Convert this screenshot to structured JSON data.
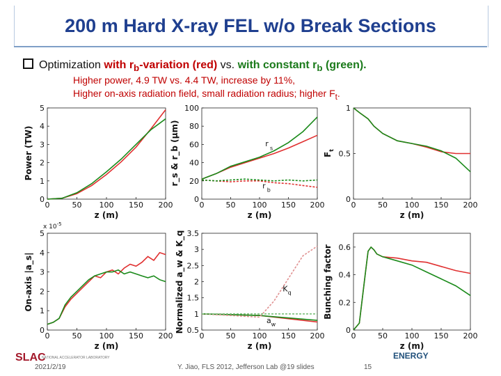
{
  "title": "200 m Hard X-ray FEL w/o Break Sections",
  "bullet": {
    "prefix": "Optimization ",
    "with_rb": "with r",
    "rb_sub": "b",
    "variation": "-variation (red)",
    "vs": " vs. ",
    "with_const": "with constant r",
    "const_sub": "b",
    "green_tag": " (green)."
  },
  "subtext": {
    "line1": "Higher power, 4.9 TW vs. 4.4 TW, increase by 11%,",
    "line2": "Higher on-axis radiation field, small radiation radius; higher F",
    "line2_sub": "t",
    "line2_end": "."
  },
  "footer": {
    "date": "2021/2/19",
    "center": "Y. Jiao, FLS 2012, Jefferson Lab @19 slides",
    "page": "15",
    "left_logo": "SLAC",
    "left_logo_tag": "NATIONAL ACCELERATOR LABORATORY",
    "right_logo": "ENERGY"
  },
  "colors": {
    "red": "#e03030",
    "green": "#1a8a1a",
    "title": "#1f3f8f"
  },
  "chart_data": [
    {
      "type": "line",
      "title": "",
      "xlabel": "z (m)",
      "ylabel": "Power (TW)",
      "xlim": [
        0,
        200
      ],
      "ylim": [
        0,
        5
      ],
      "xticks": [
        "0",
        "50",
        "100",
        "150",
        "200"
      ],
      "yticks": [
        "0",
        "1",
        "2",
        "3",
        "4",
        "5"
      ],
      "series": [
        {
          "name": "red",
          "color": "#e03030",
          "x": [
            0,
            25,
            50,
            75,
            100,
            125,
            150,
            175,
            200
          ],
          "y": [
            0,
            0.05,
            0.3,
            0.75,
            1.35,
            2.05,
            2.85,
            3.85,
            4.9
          ]
        },
        {
          "name": "green",
          "color": "#1a8a1a",
          "x": [
            0,
            25,
            50,
            75,
            100,
            125,
            150,
            175,
            200
          ],
          "y": [
            0,
            0.05,
            0.35,
            0.85,
            1.5,
            2.2,
            3.0,
            3.8,
            4.4
          ]
        }
      ]
    },
    {
      "type": "line",
      "xlabel": "z (m)",
      "ylabel": "r_s & r_b (μm)",
      "xlim": [
        0,
        200
      ],
      "ylim": [
        0,
        100
      ],
      "xticks": [
        "0",
        "50",
        "100",
        "150",
        "200"
      ],
      "yticks": [
        "0",
        "20",
        "40",
        "60",
        "80",
        "100"
      ],
      "annotations": [
        "r",
        "s",
        "r",
        "b"
      ],
      "series": [
        {
          "name": "rs red",
          "color": "#e03030",
          "x": [
            0,
            25,
            50,
            75,
            100,
            125,
            150,
            175,
            200
          ],
          "y": [
            22,
            28,
            35,
            40,
            45,
            50,
            56,
            63,
            70
          ]
        },
        {
          "name": "rs green",
          "color": "#1a8a1a",
          "x": [
            0,
            25,
            50,
            75,
            100,
            125,
            150,
            175,
            200
          ],
          "y": [
            22,
            28,
            36,
            41,
            46,
            53,
            62,
            74,
            90
          ]
        },
        {
          "name": "rb red",
          "color": "#e03030",
          "x": [
            0,
            25,
            50,
            75,
            100,
            125,
            150,
            175,
            200
          ],
          "y": [
            21,
            20,
            19,
            20,
            20,
            18,
            17,
            15,
            13
          ]
        },
        {
          "name": "rb green",
          "color": "#1a8a1a",
          "x": [
            0,
            25,
            50,
            75,
            100,
            125,
            150,
            175,
            200
          ],
          "y": [
            21,
            20,
            21,
            22,
            21,
            20,
            21,
            20,
            21
          ]
        }
      ]
    },
    {
      "type": "line",
      "xlabel": "z (m)",
      "ylabel": "F",
      "ylabel_sub": "t",
      "xlim": [
        0,
        200
      ],
      "ylim": [
        0,
        1
      ],
      "xticks": [
        "0",
        "50",
        "100",
        "150",
        "200"
      ],
      "yticks": [
        "0",
        "0.5",
        "1"
      ],
      "series": [
        {
          "name": "red",
          "color": "#e03030",
          "x": [
            0,
            10,
            25,
            35,
            50,
            75,
            100,
            125,
            150,
            175,
            200
          ],
          "y": [
            1,
            0.95,
            0.88,
            0.8,
            0.72,
            0.64,
            0.61,
            0.57,
            0.52,
            0.5,
            0.5
          ]
        },
        {
          "name": "green",
          "color": "#1a8a1a",
          "x": [
            0,
            10,
            25,
            35,
            50,
            75,
            100,
            125,
            150,
            175,
            200
          ],
          "y": [
            1,
            0.95,
            0.88,
            0.8,
            0.72,
            0.64,
            0.61,
            0.58,
            0.53,
            0.45,
            0.3
          ]
        }
      ]
    },
    {
      "type": "line",
      "xlabel": "z (m)",
      "ylabel": "On-axis |a_s|",
      "multiplier": "x 10",
      "multiplier_exp": "-5",
      "xlim": [
        0,
        200
      ],
      "ylim": [
        0,
        5
      ],
      "xticks": [
        "0",
        "50",
        "100",
        "150",
        "200"
      ],
      "yticks": [
        "0",
        "1",
        "2",
        "3",
        "4",
        "5"
      ],
      "series": [
        {
          "name": "red",
          "color": "#e03030",
          "x": [
            0,
            10,
            20,
            30,
            40,
            50,
            60,
            70,
            80,
            90,
            100,
            110,
            120,
            130,
            140,
            150,
            160,
            170,
            180,
            190,
            200
          ],
          "y": [
            0.3,
            0.4,
            0.6,
            1.2,
            1.6,
            1.9,
            2.2,
            2.5,
            2.8,
            2.7,
            3.0,
            3.1,
            2.9,
            3.2,
            3.4,
            3.3,
            3.5,
            3.8,
            3.6,
            4.0,
            3.9
          ]
        },
        {
          "name": "green",
          "color": "#1a8a1a",
          "x": [
            0,
            10,
            20,
            30,
            40,
            50,
            60,
            70,
            80,
            90,
            100,
            110,
            120,
            130,
            140,
            150,
            160,
            170,
            180,
            190,
            200
          ],
          "y": [
            0.3,
            0.4,
            0.6,
            1.3,
            1.7,
            2.0,
            2.3,
            2.6,
            2.8,
            2.9,
            3.0,
            3.0,
            3.1,
            2.9,
            3.0,
            2.9,
            2.8,
            2.7,
            2.8,
            2.6,
            2.5
          ]
        }
      ]
    },
    {
      "type": "line",
      "xlabel": "z (m)",
      "ylabel": "Normalized a_w & K_q",
      "xlim": [
        0,
        200
      ],
      "ylim": [
        0.5,
        3.5
      ],
      "xticks": [
        "0",
        "50",
        "100",
        "150",
        "200"
      ],
      "yticks": [
        "0.5",
        "1",
        "1.5",
        "2",
        "2.5",
        "3",
        "3.5"
      ],
      "annotations": [
        "K",
        "q",
        "a",
        "w"
      ],
      "series": [
        {
          "name": "aw red",
          "color": "#e03030",
          "x": [
            0,
            100,
            200
          ],
          "y": [
            1.0,
            0.95,
            0.75
          ]
        },
        {
          "name": "aw green",
          "color": "#1a8a1a",
          "x": [
            0,
            100,
            200
          ],
          "y": [
            1.0,
            0.95,
            0.8
          ]
        },
        {
          "name": "Kq red",
          "color": "#e09090",
          "x": [
            0,
            100,
            125,
            150,
            175,
            200
          ],
          "y": [
            1.0,
            0.9,
            1.4,
            2.1,
            2.8,
            3.1
          ]
        },
        {
          "name": "Kq green",
          "color": "#7abf7a",
          "x": [
            0,
            100,
            150,
            200
          ],
          "y": [
            1.0,
            1.0,
            1.0,
            1.0
          ]
        }
      ]
    },
    {
      "type": "line",
      "xlabel": "z (m)",
      "ylabel": "Bunching factor",
      "xlim": [
        0,
        200
      ],
      "ylim": [
        0,
        0.7
      ],
      "xticks": [
        "0",
        "50",
        "100",
        "150",
        "200"
      ],
      "yticks": [
        "0",
        "0.2",
        "0.4",
        "0.6"
      ],
      "series": [
        {
          "name": "red",
          "color": "#e03030",
          "x": [
            0,
            10,
            20,
            25,
            30,
            35,
            40,
            50,
            75,
            100,
            125,
            150,
            175,
            200
          ],
          "y": [
            0.0,
            0.05,
            0.4,
            0.57,
            0.6,
            0.58,
            0.55,
            0.53,
            0.52,
            0.5,
            0.49,
            0.46,
            0.43,
            0.41
          ]
        },
        {
          "name": "green",
          "color": "#1a8a1a",
          "x": [
            0,
            10,
            20,
            25,
            30,
            35,
            40,
            50,
            75,
            100,
            125,
            150,
            175,
            200
          ],
          "y": [
            0.0,
            0.05,
            0.4,
            0.57,
            0.6,
            0.58,
            0.55,
            0.53,
            0.5,
            0.47,
            0.42,
            0.37,
            0.32,
            0.25
          ]
        }
      ]
    }
  ]
}
